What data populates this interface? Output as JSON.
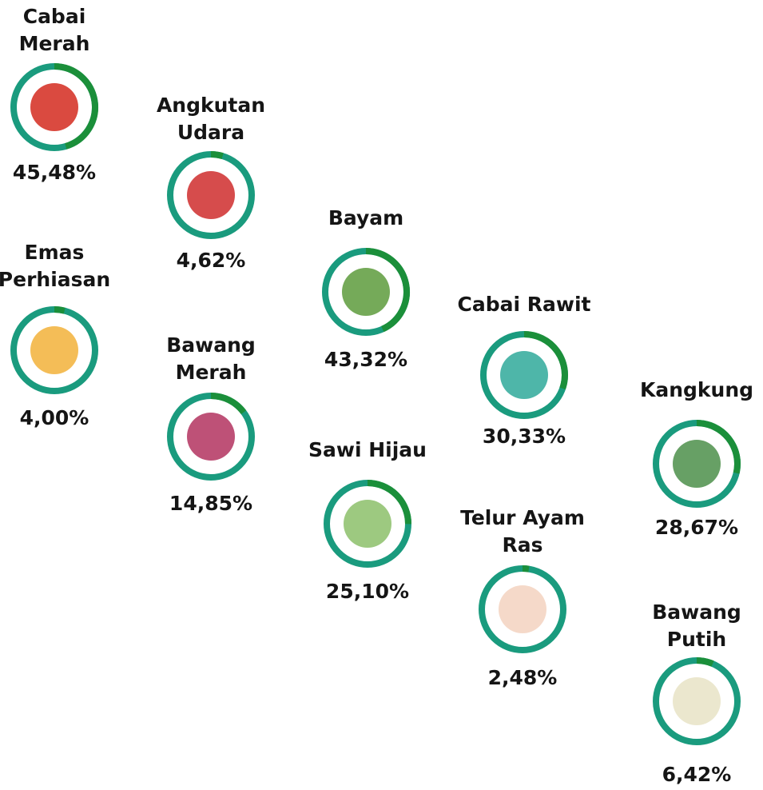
{
  "chart_data": {
    "type": "ring",
    "categories": [
      [
        "Cabai",
        "Merah"
      ],
      [
        "Angkutan",
        "Udara"
      ],
      [
        "Emas",
        "Perhiasan"
      ],
      [
        "Bawang",
        "Merah"
      ],
      [
        "Bayam"
      ],
      [
        "Sawi Hijau"
      ],
      [
        "Cabai Rawit"
      ],
      [
        "Telur Ayam",
        "Ras"
      ],
      [
        "Kangkung"
      ],
      [
        "Bawang",
        "Putih"
      ]
    ],
    "values": [
      45.48,
      4.62,
      4.0,
      14.85,
      43.32,
      25.1,
      30.33,
      2.48,
      28.67,
      6.42
    ],
    "value_labels": [
      "45,48%",
      "4,62%",
      "4,00%",
      "14,85%",
      "43,32%",
      "25,10%",
      "30,33%",
      "2,48%",
      "28,67%",
      "6,42%"
    ],
    "color": "#1b8f3a",
    "track_color": "#1a9b7e"
  }
}
